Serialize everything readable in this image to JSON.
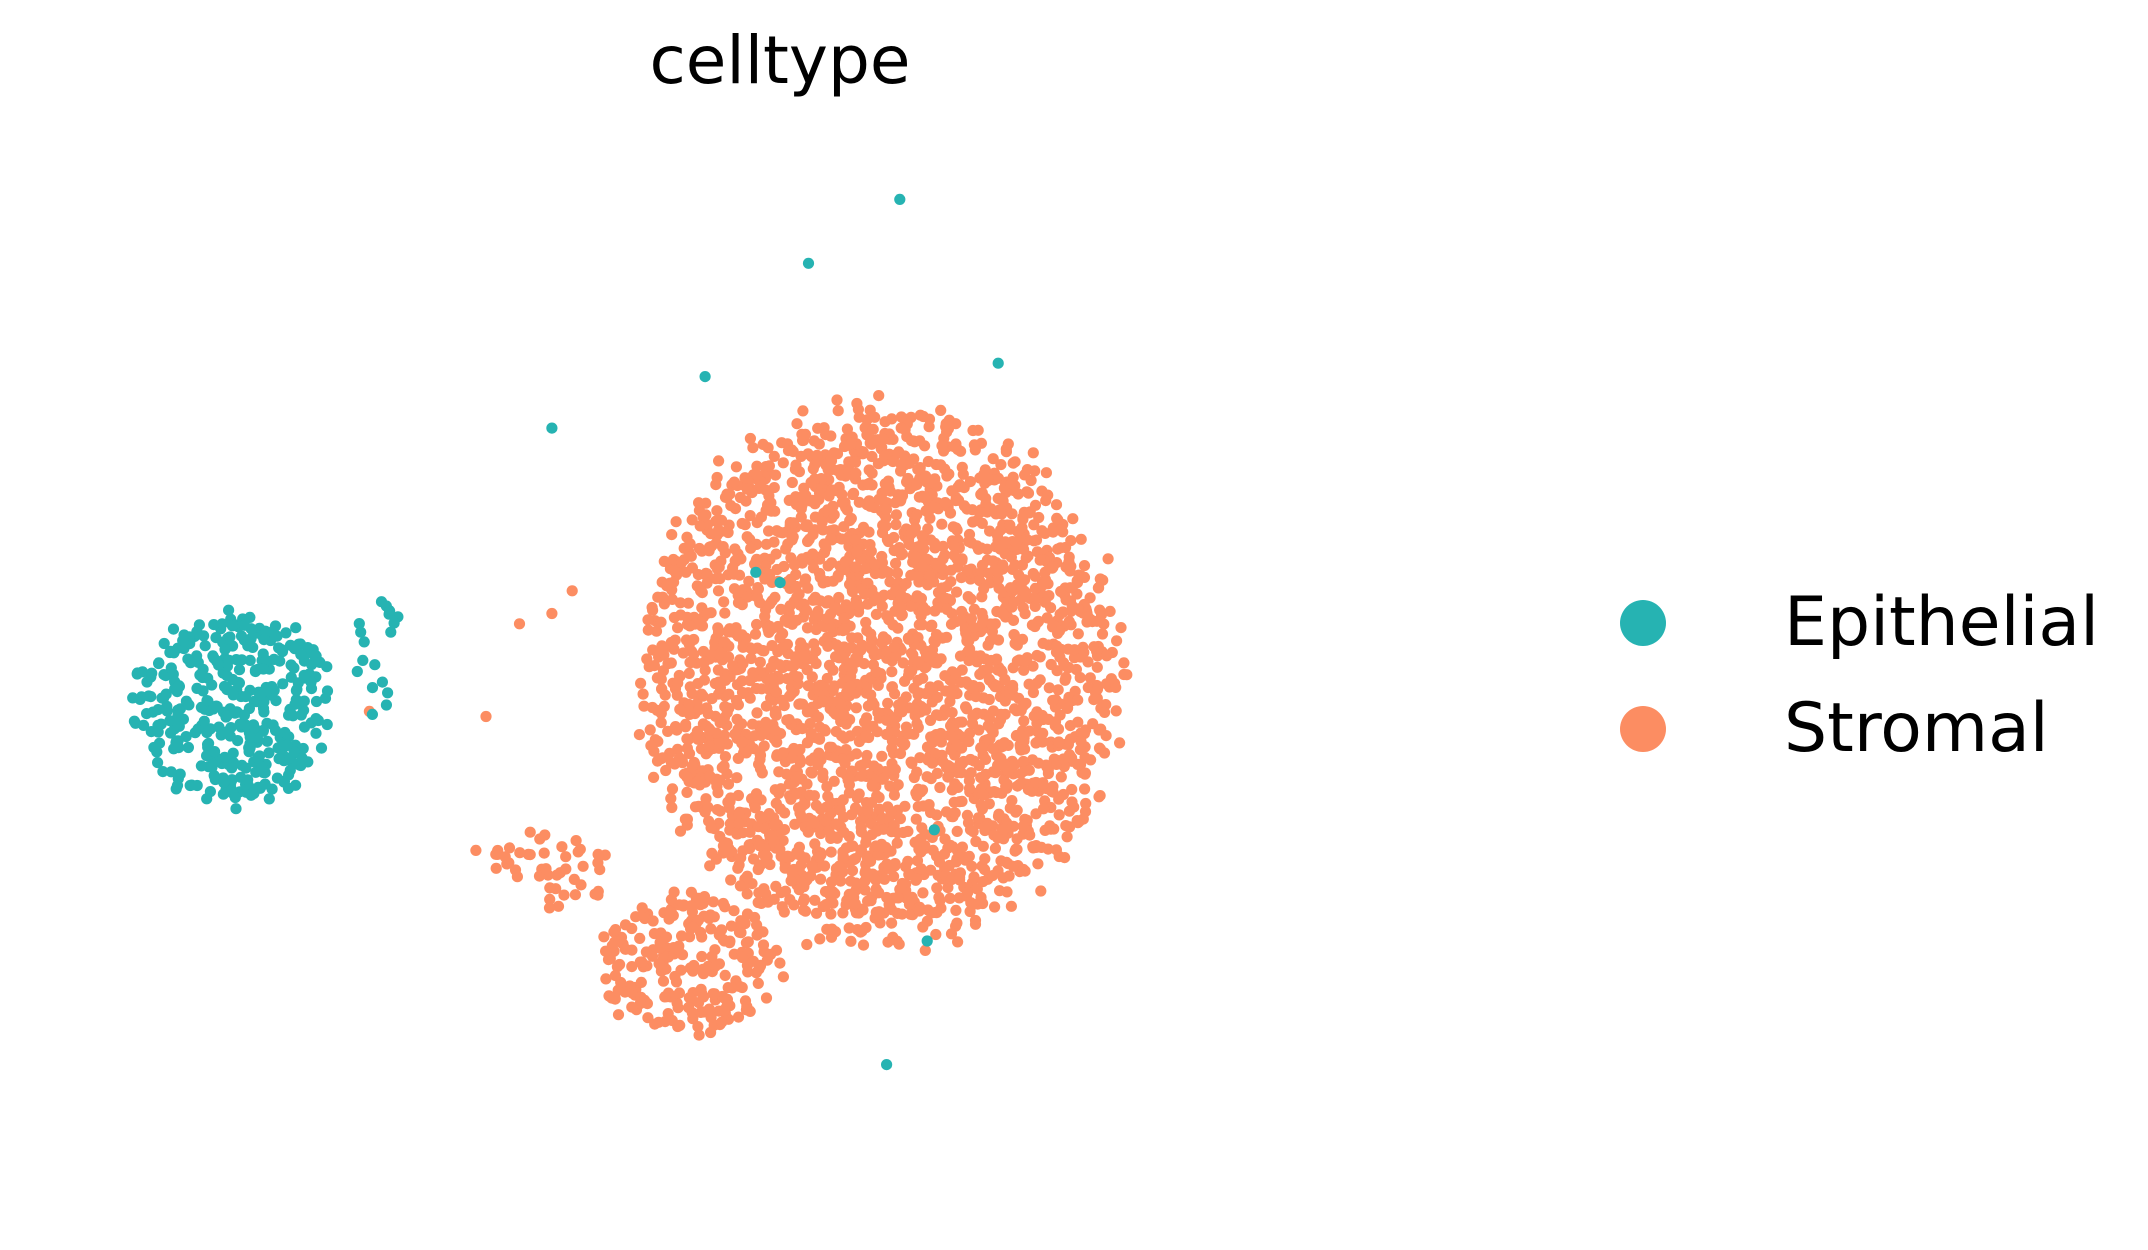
{
  "chart_data": {
    "type": "scatter",
    "title": "celltype",
    "xlabel": "",
    "ylabel": "",
    "grid": false,
    "axes_visible": false,
    "legend_placement": "right",
    "series": [
      {
        "name": "Epithelial",
        "color": "#26b3b2",
        "clusters": [
          {
            "center": [
              1.7,
              4.6
            ],
            "spread": [
              1.05,
              1.0
            ],
            "n": 380
          },
          {
            "center": [
              3.15,
              5.1
            ],
            "spread": [
              0.25,
              0.7
            ],
            "n": 18
          }
        ],
        "points": [
          [
            4.85,
            7.3
          ],
          [
            7.1,
            5.8
          ],
          [
            7.38,
            8.9
          ],
          [
            8.28,
            9.52
          ],
          [
            9.25,
            7.93
          ],
          [
            8.15,
            1.12
          ],
          [
            8.55,
            2.32
          ],
          [
            8.62,
            3.4
          ],
          [
            6.86,
            5.9
          ],
          [
            6.36,
            7.8
          ]
        ]
      },
      {
        "name": "Stromal",
        "color": "#fc8d62",
        "clusters": [
          {
            "center": [
              8.1,
              4.9
            ],
            "spread": [
              2.5,
              2.75
            ],
            "n": 2800
          },
          {
            "center": [
              6.2,
              2.1
            ],
            "spread": [
              0.95,
              0.75
            ],
            "n": 240
          },
          {
            "center": [
              4.8,
              3.0
            ],
            "spread": [
              0.75,
              0.45
            ],
            "n": 45
          }
        ],
        "points": [
          [
            3.05,
            4.55
          ],
          [
            4.1,
            3.2
          ],
          [
            4.2,
            4.5
          ],
          [
            4.78,
            3.35
          ],
          [
            4.85,
            5.5
          ],
          [
            4.53,
            5.4
          ],
          [
            5.05,
            5.72
          ]
        ]
      }
    ]
  }
}
